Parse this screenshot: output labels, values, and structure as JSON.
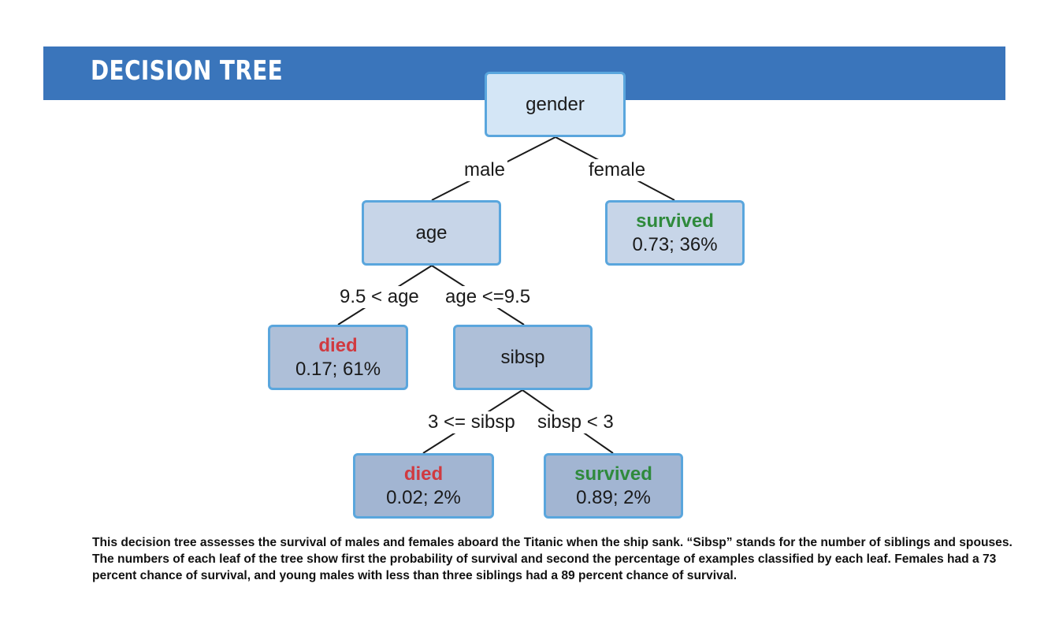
{
  "header": {
    "title": "DECISION TREE"
  },
  "tree": {
    "root": {
      "label": "gender"
    },
    "edge_male": "male",
    "edge_female": "female",
    "age": {
      "label": "age"
    },
    "female_leaf": {
      "outcome": "survived",
      "stats": "0.73;  36%"
    },
    "edge_age_gt": "9.5 < age",
    "edge_age_le": "age <=9.5",
    "older_leaf": {
      "outcome": "died",
      "stats": "0.17;  61%"
    },
    "sibsp": {
      "label": "sibsp"
    },
    "edge_sibsp_ge": "3 <= sibsp",
    "edge_sibsp_lt": "sibsp < 3",
    "many_sibs_leaf": {
      "outcome": "died",
      "stats": "0.02;  2%"
    },
    "few_sibs_leaf": {
      "outcome": "survived",
      "stats": "0.89;  2%"
    }
  },
  "caption": "This decision tree assesses the survival of males and females aboard the Titanic when the ship sank. “Sibsp” stands for the number of siblings and spouses. The numbers of each leaf of the tree show first the probability of survival and second the percentage of examples classified by each leaf. Females had a 73 percent chance of survival, and young males with less than three siblings had a 89 percent chance of survival.",
  "colors": {
    "banner": "#3a75bb",
    "node_border": "#5aa6dd",
    "died": "#d03a40",
    "survived": "#2f8a3c"
  }
}
